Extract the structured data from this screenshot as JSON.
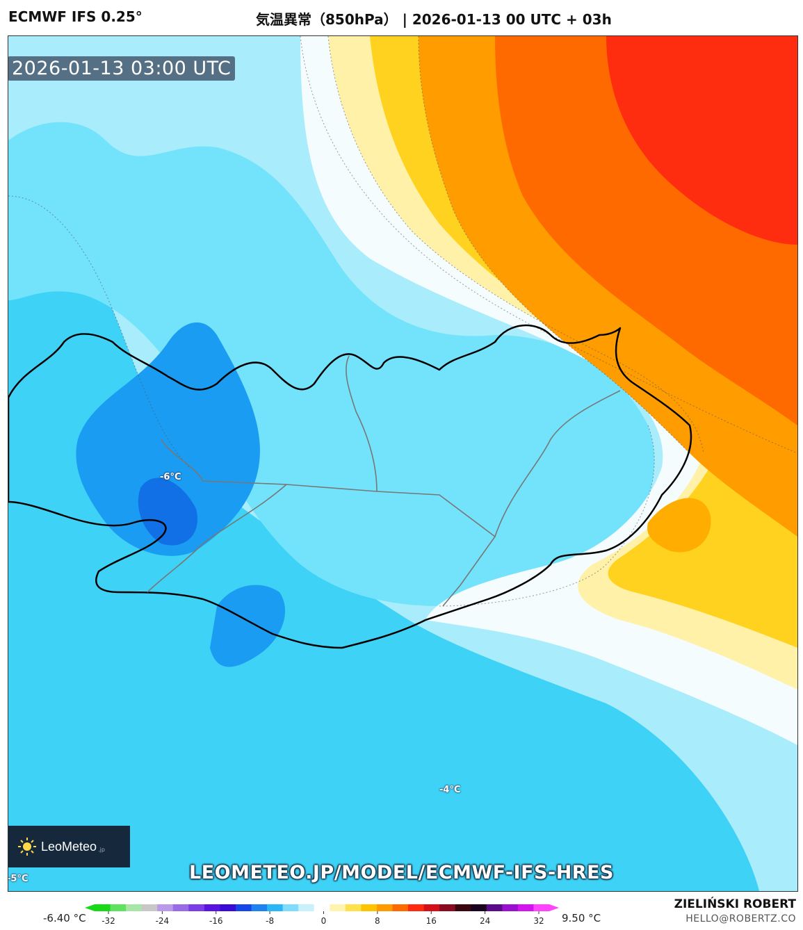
{
  "header": {
    "model": "ECMWF IFS 0.25°",
    "title": "気温異常（850hPa） | 2026-01-13 00 UTC + 03h"
  },
  "map": {
    "valid_time": "2026-01-13 03:00 UTC",
    "labels": [
      {
        "text": "-6°C"
      },
      {
        "text": "-4°C"
      },
      {
        "text": "-5°C"
      }
    ],
    "url": "LEOMETEO.JP/MODEL/ECMWF-IFS-HRES",
    "logo": {
      "name": "LeoMeteo",
      "suffix": ".jp",
      "icon": "sun-icon"
    }
  },
  "legend": {
    "min_label": "-6.40 °C",
    "max_label": "9.50 °C",
    "ticks": [
      "-32",
      "-24",
      "-16",
      "-8",
      "0",
      "8",
      "16",
      "24",
      "32"
    ],
    "colors": [
      "#17d917",
      "#5fe35f",
      "#a8e6a8",
      "#c8c8c8",
      "#b89ae8",
      "#9a6be6",
      "#7a3de8",
      "#5a14e0",
      "#3a0ad6",
      "#1446e8",
      "#1e82f0",
      "#2bb6f7",
      "#7fdcfa",
      "#c9f1fc",
      "#ffffff",
      "#fff3b0",
      "#ffe04d",
      "#ffc400",
      "#ff9a00",
      "#ff6a00",
      "#ff2a10",
      "#d4101a",
      "#8a0a20",
      "#3a0610",
      "#1a0320",
      "#5a0a8a",
      "#9a0fd0",
      "#d414f0",
      "#ff44ff"
    ]
  },
  "credit": {
    "name": "ZIELIŃSKI ROBERT",
    "email": "HELLO@ROBERTZ.CO"
  }
}
